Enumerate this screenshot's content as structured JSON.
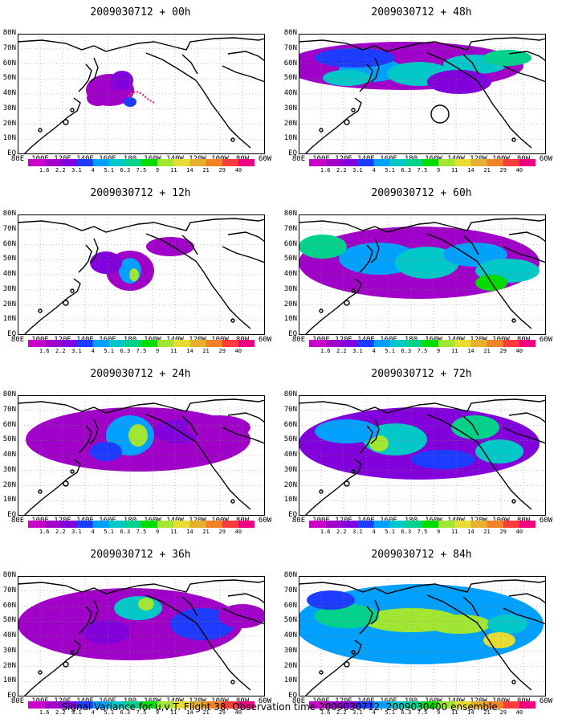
{
  "footer": "Signal Variance for u,v,T. Flight 38. Observation time 2009030712. 2009030400 ensemble.",
  "lat_labels": [
    "80N",
    "70N",
    "60N",
    "50N",
    "40N",
    "30N",
    "20N",
    "10N",
    "EQ"
  ],
  "lon_labels": [
    "80E",
    "100E",
    "120E",
    "140E",
    "160E",
    "180",
    "160W",
    "140W",
    "120W",
    "100W",
    "80W",
    "60W"
  ],
  "colorbar": {
    "labels": [
      "1.6",
      "2.2",
      "3.1",
      "4",
      "5.1",
      "6.3",
      "7.5",
      "9",
      "11",
      "14",
      "21",
      "29",
      "40"
    ],
    "colors": [
      "#a000c8",
      "#8200dc",
      "#1e3cff",
      "#00a0ff",
      "#00c8c8",
      "#00d28c",
      "#00dc00",
      "#a0e632",
      "#e6dc32",
      "#e6af2d",
      "#f08228",
      "#fa3c3c",
      "#f00082"
    ]
  },
  "panels": [
    {
      "title": "2009030712 + 00h"
    },
    {
      "title": "2009030712 + 48h"
    },
    {
      "title": "2009030712 + 12h"
    },
    {
      "title": "2009030712 + 60h"
    },
    {
      "title": "2009030712 + 24h"
    },
    {
      "title": "2009030712 + 72h"
    },
    {
      "title": "2009030712 + 36h"
    },
    {
      "title": "2009030712 + 84h"
    }
  ]
}
